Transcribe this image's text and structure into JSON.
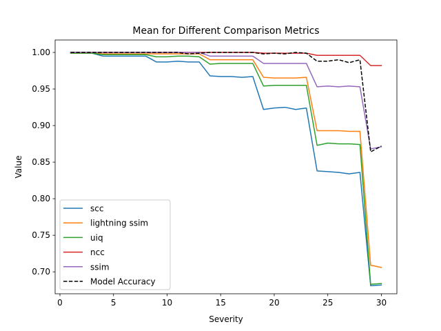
{
  "chart_data": {
    "type": "line",
    "title": "Mean for Different Comparison Metrics",
    "xlabel": "Severity",
    "ylabel": "Value",
    "xlim": [
      -0.45,
      31.45
    ],
    "ylim": [
      0.67,
      1.017
    ],
    "xticks": [
      0,
      5,
      10,
      15,
      20,
      25,
      30
    ],
    "yticks": [
      0.7,
      0.75,
      0.8,
      0.85,
      0.9,
      0.95,
      1.0
    ],
    "ytick_labels": [
      "0.70",
      "0.75",
      "0.80",
      "0.85",
      "0.90",
      "0.95",
      "1.00"
    ],
    "legend_position": "lower-left",
    "grid": false,
    "x": [
      1,
      2,
      3,
      4,
      5,
      6,
      7,
      8,
      9,
      10,
      11,
      12,
      13,
      14,
      15,
      16,
      17,
      18,
      19,
      20,
      21,
      22,
      23,
      24,
      25,
      26,
      27,
      28,
      29,
      30
    ],
    "series": [
      {
        "name": "scc",
        "color": "#1f77b4",
        "dash": false,
        "values": [
          1.0,
          1.0,
          0.999,
          0.995,
          0.995,
          0.995,
          0.995,
          0.995,
          0.987,
          0.987,
          0.988,
          0.987,
          0.987,
          0.968,
          0.967,
          0.967,
          0.966,
          0.967,
          0.922,
          0.924,
          0.925,
          0.922,
          0.924,
          0.838,
          0.837,
          0.836,
          0.834,
          0.836,
          0.681,
          0.682
        ]
      },
      {
        "name": "lightning ssim",
        "color": "#ff7f0e",
        "dash": false,
        "values": [
          0.999,
          0.999,
          0.999,
          0.998,
          0.998,
          0.998,
          0.998,
          0.998,
          0.998,
          0.998,
          0.998,
          0.998,
          0.998,
          0.99,
          0.99,
          0.99,
          0.99,
          0.99,
          0.966,
          0.965,
          0.965,
          0.965,
          0.966,
          0.893,
          0.893,
          0.893,
          0.892,
          0.892,
          0.709,
          0.706
        ]
      },
      {
        "name": "uiq",
        "color": "#2ca02c",
        "dash": false,
        "values": [
          0.999,
          0.999,
          0.999,
          0.997,
          0.997,
          0.997,
          0.997,
          0.997,
          0.994,
          0.994,
          0.995,
          0.995,
          0.994,
          0.984,
          0.985,
          0.985,
          0.985,
          0.985,
          0.954,
          0.955,
          0.955,
          0.955,
          0.955,
          0.873,
          0.876,
          0.875,
          0.875,
          0.874,
          0.683,
          0.684
        ]
      },
      {
        "name": "ncc",
        "color": "#d62728",
        "dash": false,
        "values": [
          1.0,
          1.0,
          1.0,
          1.0,
          1.0,
          1.0,
          1.0,
          1.0,
          1.0,
          1.0,
          1.0,
          1.0,
          1.0,
          1.0,
          1.0,
          1.0,
          1.0,
          1.0,
          0.999,
          0.999,
          0.999,
          0.999,
          0.999,
          0.996,
          0.996,
          0.996,
          0.996,
          0.996,
          0.982,
          0.982
        ]
      },
      {
        "name": "ssim",
        "color": "#9467bd",
        "dash": false,
        "values": [
          1.0,
          1.0,
          1.0,
          1.0,
          1.0,
          1.0,
          1.0,
          1.0,
          1.0,
          1.0,
          1.0,
          1.0,
          1.0,
          0.995,
          0.995,
          0.995,
          0.995,
          0.995,
          0.985,
          0.985,
          0.985,
          0.985,
          0.985,
          0.953,
          0.954,
          0.953,
          0.954,
          0.953,
          0.868,
          0.871
        ]
      },
      {
        "name": "Model Accuracy",
        "color": "#000000",
        "dash": true,
        "values": [
          1.0,
          1.0,
          1.0,
          1.0,
          1.0,
          1.0,
          1.0,
          1.0,
          1.0,
          1.0,
          1.0,
          0.998,
          0.999,
          1.0,
          1.0,
          1.0,
          1.0,
          1.0,
          0.998,
          0.999,
          0.998,
          1.0,
          0.999,
          0.988,
          0.988,
          0.99,
          0.986,
          0.99,
          0.864,
          0.872
        ]
      }
    ]
  }
}
